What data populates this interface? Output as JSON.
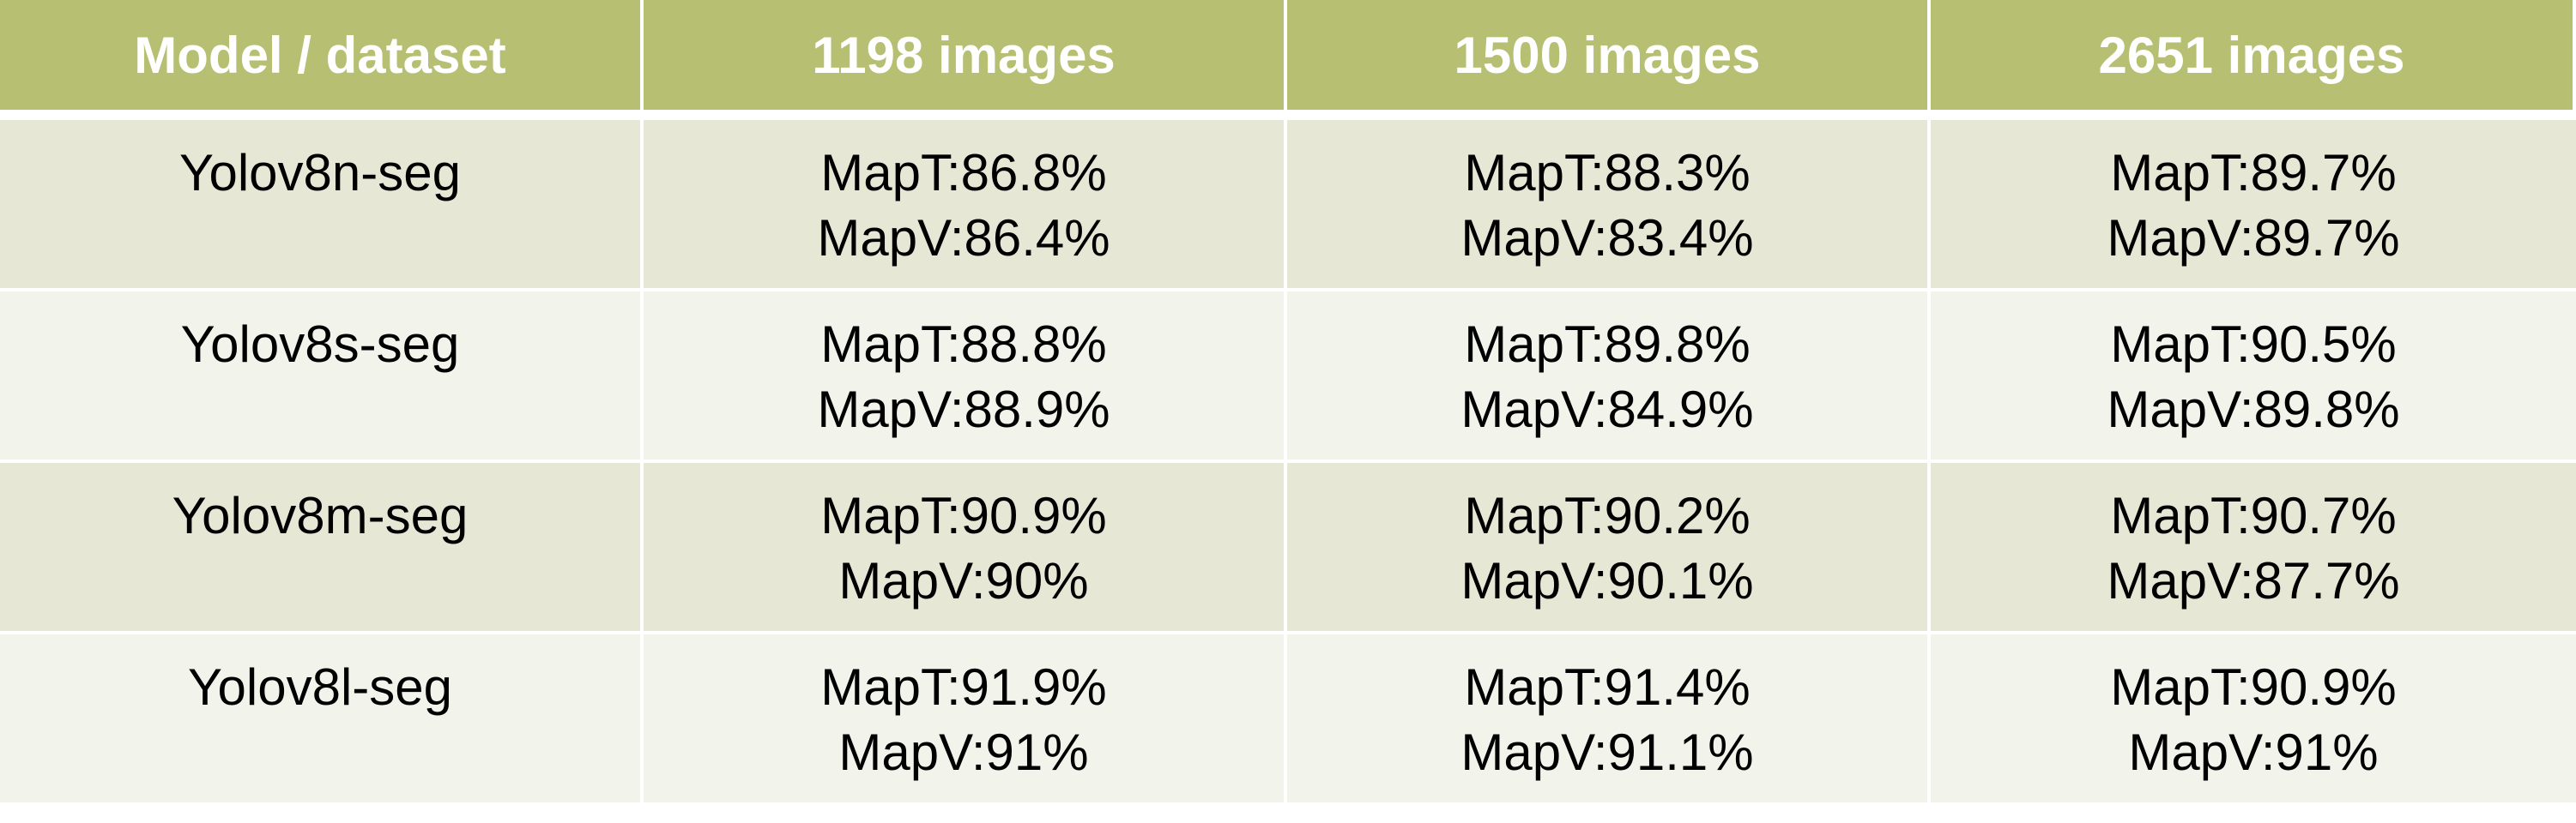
{
  "chart_data": {
    "type": "table",
    "columns": [
      "Model / dataset",
      "1198 images",
      "1500 images",
      "2651 images"
    ],
    "rows": [
      {
        "model": "Yolov8n-seg",
        "cells": [
          {
            "mapt": "MapT:86.8%",
            "mapv": "MapV:86.4%"
          },
          {
            "mapt": "MapT:88.3%",
            "mapv": "MapV:83.4%"
          },
          {
            "mapt": "MapT:89.7%",
            "mapv": "MapV:89.7%"
          }
        ]
      },
      {
        "model": "Yolov8s-seg",
        "cells": [
          {
            "mapt": "MapT:88.8%",
            "mapv": "MapV:88.9%"
          },
          {
            "mapt": "MapT:89.8%",
            "mapv": "MapV:84.9%"
          },
          {
            "mapt": "MapT:90.5%",
            "mapv": "MapV:89.8%"
          }
        ]
      },
      {
        "model": "Yolov8m-seg",
        "cells": [
          {
            "mapt": "MapT:90.9%",
            "mapv": "MapV:90%"
          },
          {
            "mapt": "MapT:90.2%",
            "mapv": "MapV:90.1%"
          },
          {
            "mapt": "MapT:90.7%",
            "mapv": "MapV:87.7%"
          }
        ]
      },
      {
        "model": "Yolov8l-seg",
        "cells": [
          {
            "mapt": "MapT:91.9%",
            "mapv": "MapV:91%"
          },
          {
            "mapt": "MapT:91.4%",
            "mapv": "MapV:91.1%"
          },
          {
            "mapt": "MapT:90.9%",
            "mapv": "MapV:91%"
          }
        ]
      }
    ]
  },
  "colors": {
    "header_bg": "#b6bf72",
    "row_odd_bg": "#e6e7d4",
    "row_even_bg": "#f2f3ea"
  }
}
